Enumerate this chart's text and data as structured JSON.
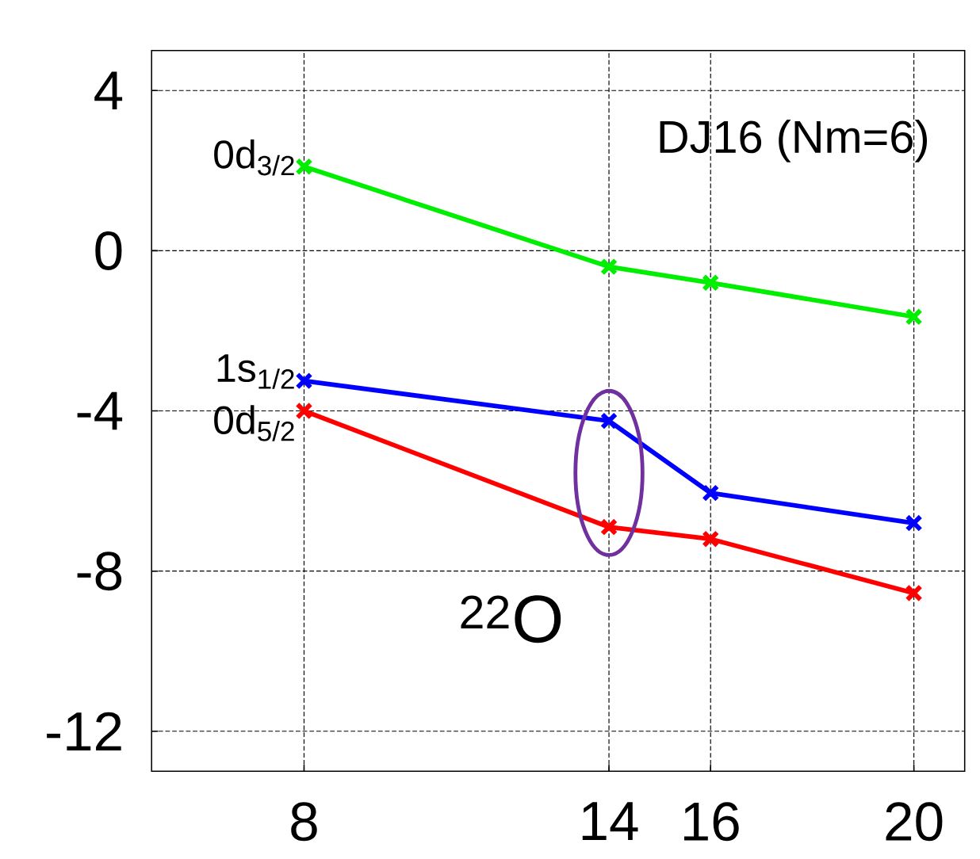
{
  "chart_data": {
    "type": "line",
    "x": [
      8,
      14,
      16,
      20
    ],
    "series": [
      {
        "name": "0d$_{3/2}$",
        "color": "#00ee00",
        "values": [
          2.1,
          -0.4,
          -0.8,
          -1.65
        ]
      },
      {
        "name": "1s$_{1/2}$",
        "color": "#0000ff",
        "values": [
          -3.25,
          -4.25,
          -6.05,
          -6.8
        ]
      },
      {
        "name": "0d$_{5/2}$",
        "color": "#ff0000",
        "values": [
          -4.0,
          -6.9,
          -7.2,
          -8.55
        ]
      }
    ],
    "xlim": [
      5,
      21
    ],
    "ylim": [
      -13,
      5
    ],
    "xticks": [
      8,
      14,
      16,
      20
    ],
    "yticks": [
      -12,
      -8,
      -4,
      0,
      4
    ],
    "grid": true,
    "marker": "cross",
    "line_style": "solid",
    "annotations": [
      "DJ16 (Nm=6)",
      "$^{22}$O"
    ]
  }
}
